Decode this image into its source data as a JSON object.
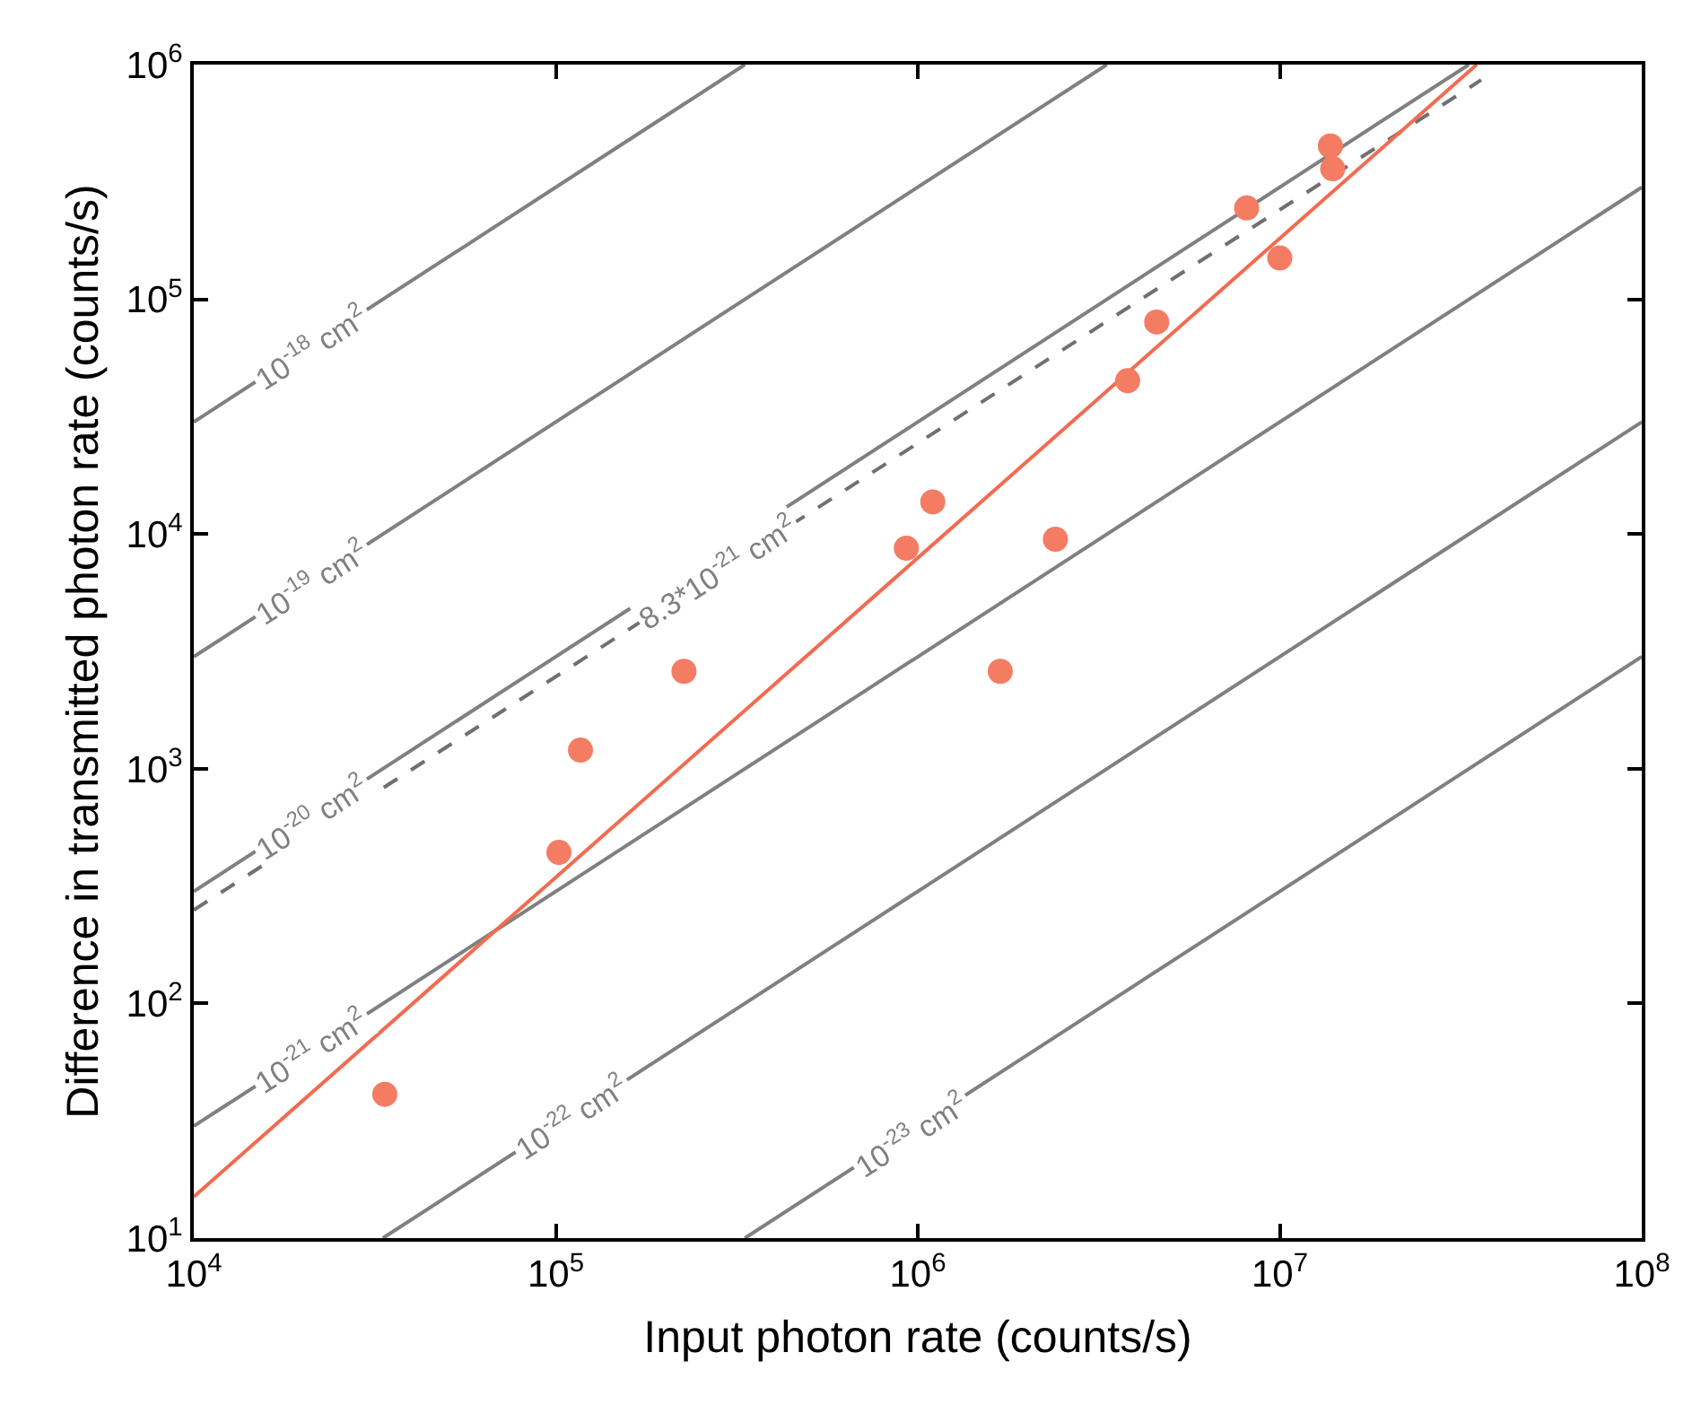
{
  "chart_data": {
    "type": "scatter",
    "xlabel": "Input photon rate (counts/s)",
    "ylabel": "Difference in transmitted photon rate (counts/s)",
    "log": "xy",
    "grid": false,
    "xlim": [
      10000,
      100000000
    ],
    "ylim": [
      10,
      1000000
    ],
    "xticks": [
      {
        "value": 10000,
        "label": "10$^{4}$"
      },
      {
        "value": 100000,
        "label": "10$^{5}$"
      },
      {
        "value": 1000000,
        "label": "10$^{6}$"
      },
      {
        "value": 10000000,
        "label": "10$^{7}$"
      },
      {
        "value": 100000000,
        "label": "10$^{8}$"
      }
    ],
    "yticks": [
      {
        "value": 10,
        "label": "10$^{1}$"
      },
      {
        "value": 100,
        "label": "10$^{2}$"
      },
      {
        "value": 1000,
        "label": "10$^{3}$"
      },
      {
        "value": 10000,
        "label": "10$^{4}$"
      },
      {
        "value": 100000,
        "label": "10$^{5}$"
      },
      {
        "value": 1000000,
        "label": "10$^{6}$"
      }
    ],
    "series": [
      {
        "type": "line",
        "color": "#808080",
        "line_style": "solid",
        "marker": "none",
        "x": [
          10000,
          333000
        ],
        "values": [
          30000,
          1000000
        ]
      },
      {
        "type": "line",
        "color": "#808080",
        "line_style": "solid",
        "marker": "none",
        "x": [
          10000,
          3330000
        ],
        "values": [
          3000,
          1000000
        ]
      },
      {
        "type": "line",
        "color": "#808080",
        "line_style": "solid",
        "marker": "none",
        "x": [
          10000,
          33300000
        ],
        "values": [
          300,
          1000000
        ]
      },
      {
        "type": "line",
        "color": "#808080",
        "line_style": "solid",
        "marker": "none",
        "x": [
          10000,
          100000000
        ],
        "values": [
          30,
          300000
        ]
      },
      {
        "type": "line",
        "color": "#808080",
        "line_style": "solid",
        "marker": "none",
        "x": [
          33300,
          100000000
        ],
        "values": [
          10,
          30000
        ]
      },
      {
        "type": "line",
        "color": "#808080",
        "line_style": "solid",
        "marker": "none",
        "x": [
          333000,
          100000000
        ],
        "values": [
          10,
          3000
        ]
      },
      {
        "type": "line",
        "color": "#707070",
        "line_style": "dashed",
        "marker": "none",
        "x": [
          10000,
          36000000
        ],
        "values": [
          250,
          860000
        ]
      },
      {
        "type": "line",
        "color": "#f26b50",
        "line_style": "solid",
        "marker": "none",
        "x": [
          10000,
          35000000
        ],
        "values": [
          15,
          1000000
        ]
      },
      {
        "color": "#f47c63",
        "marker": "circle",
        "x": [
          33700,
          102000,
          117000,
          226000,
          930000,
          1100000,
          1690000,
          2400000,
          3800000,
          4570000,
          8100000,
          10000000,
          13800000,
          14000000
        ],
        "values": [
          41,
          440,
          1200,
          2600,
          8700,
          13700,
          2600,
          9500,
          45000,
          80000,
          245000,
          150000,
          450000,
          360000
        ]
      }
    ],
    "annotations": [
      {
        "text": "10$^{-18}$ cm$^{2}$",
        "x": 21000,
        "y": 63000
      },
      {
        "text": "10$^{-19}$ cm$^{2}$",
        "x": 21000,
        "y": 6300
      },
      {
        "text": "10$^{-20}$ cm$^{2}$",
        "x": 21000,
        "y": 630
      },
      {
        "text": "10$^{-21}$ cm$^{2}$",
        "x": 21000,
        "y": 63
      },
      {
        "text": "10$^{-22}$ cm$^{2}$",
        "x": 110000,
        "y": 33
      },
      {
        "text": "10$^{-23}$ cm$^{2}$",
        "x": 950000,
        "y": 28
      },
      {
        "text": "8.3*10$^{-21}$ cm$^{2}$",
        "x": 280000,
        "y": 7000
      }
    ]
  }
}
